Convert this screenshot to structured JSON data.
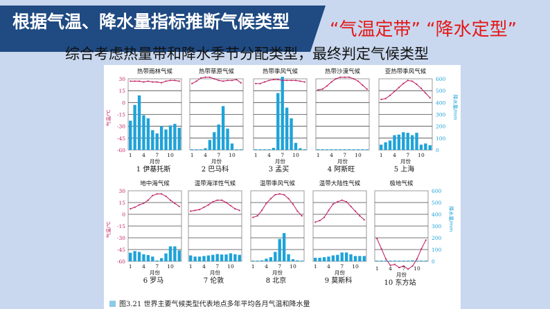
{
  "header": {
    "title": "根据气温、降水量指标推断气候类型",
    "slogan": "“气温定带” “降水定型”",
    "subtitle": "综合考虑热量带和降水季节分配类型，最终判定气候类型"
  },
  "figure_caption": "图3.21  世界主要气候类型代表地点多年平均各月气温和降水量",
  "colors": {
    "header_band": "#1f4a82",
    "slogan": "#e41818",
    "bars": "#1ea3d9",
    "temp_line": "#c0286a",
    "temp_axis": "#c0286a",
    "precip_axis": "#1ea3d9"
  },
  "chart_data": {
    "type": "bar+line",
    "temp_axis": {
      "label": "气温/℃",
      "ticks": [
        30,
        15,
        0,
        -15,
        -30,
        -45,
        -60
      ],
      "range": [
        -60,
        30
      ]
    },
    "precip_axis": {
      "label": "降水量/mm",
      "ticks": [
        600,
        500,
        400,
        300,
        200,
        100,
        0
      ],
      "range": [
        0,
        600
      ]
    },
    "month_ticks": [
      "1",
      "4",
      "7",
      "10"
    ],
    "xlabel": "月份",
    "grid": true,
    "charts": [
      {
        "title": "热带雨林气候",
        "label": "1   伊基托斯",
        "temp": [
          27,
          27,
          27,
          26,
          27,
          26,
          26,
          25,
          27,
          28,
          28,
          27
        ],
        "precip": [
          247,
          380,
          460,
          293,
          267,
          167,
          140,
          200,
          173,
          207,
          220,
          187
        ]
      },
      {
        "title": "热带草原气候",
        "label": "2   巴马科",
        "temp": [
          24,
          27,
          31,
          32,
          32,
          30,
          28,
          27,
          28,
          28,
          29,
          25
        ],
        "precip": [
          2,
          0,
          3,
          15,
          85,
          150,
          215,
          370,
          180,
          55,
          3,
          0
        ]
      },
      {
        "title": "热带季风气候",
        "label": "3   孟买",
        "temp": [
          24,
          24,
          26,
          28,
          29,
          29,
          28,
          28,
          28,
          28,
          27,
          26
        ],
        "precip": [
          2,
          2,
          2,
          2,
          18,
          480,
          617,
          357,
          267,
          60,
          15,
          5
        ]
      },
      {
        "title": "热带沙漠气候",
        "label": "4   阿斯旺",
        "temp": [
          16,
          17,
          21,
          26,
          30,
          32,
          32,
          32,
          30,
          27,
          22,
          17
        ],
        "precip": [
          0,
          0,
          0,
          0,
          0,
          0,
          0,
          0,
          0,
          0,
          0,
          0
        ]
      },
      {
        "title": "亚热带季风气候",
        "label": "5   上海",
        "temp": [
          4,
          5,
          9,
          14,
          19,
          24,
          28,
          27,
          23,
          18,
          12,
          6
        ],
        "precip": [
          45,
          65,
          80,
          125,
          130,
          150,
          145,
          125,
          145,
          45,
          55,
          40
        ]
      },
      {
        "title": "地中海气候",
        "label": "6   罗马",
        "temp": [
          7,
          9,
          12,
          14,
          18,
          24,
          26,
          26,
          23,
          18,
          14,
          10
        ],
        "precip": [
          73,
          87,
          80,
          60,
          53,
          40,
          7,
          27,
          67,
          127,
          127,
          93
        ]
      },
      {
        "title": "温带海洋性气候",
        "label": "7   伦敦",
        "temp": [
          4,
          5,
          6,
          9,
          12,
          16,
          18,
          18,
          15,
          11,
          7,
          5
        ],
        "precip": [
          50,
          40,
          40,
          45,
          50,
          55,
          62,
          58,
          58,
          68,
          60,
          55
        ]
      },
      {
        "title": "温带季风气候",
        "label": "8   北京",
        "temp": [
          -4,
          -2,
          5,
          14,
          20,
          25,
          26,
          25,
          20,
          13,
          4,
          -2
        ],
        "precip": [
          3,
          5,
          8,
          22,
          35,
          80,
          190,
          240,
          60,
          18,
          8,
          3
        ]
      },
      {
        "title": "温带大陆性气候",
        "label": "9   莫斯科",
        "temp": [
          -10,
          -8,
          -4,
          5,
          13,
          16,
          18,
          16,
          10,
          4,
          -2,
          -7
        ],
        "precip": [
          30,
          30,
          35,
          40,
          50,
          55,
          75,
          75,
          60,
          45,
          45,
          45
        ]
      },
      {
        "title": "极地气候",
        "label": "10   东方站",
        "temp": [
          -31,
          -44,
          -57,
          -65,
          -64,
          -68,
          -66,
          -70,
          -66,
          -57,
          -44,
          -33
        ],
        "precip": [
          0,
          0,
          1,
          1,
          2,
          2,
          1,
          2,
          8,
          2,
          1,
          0
        ]
      }
    ]
  }
}
